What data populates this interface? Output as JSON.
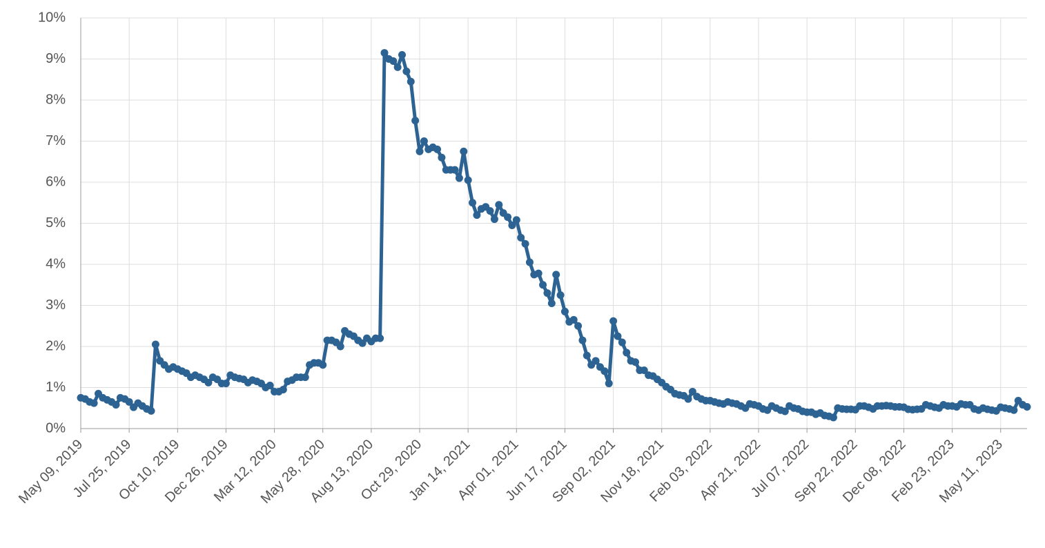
{
  "chart_data": {
    "type": "line",
    "categories": [
      "May 09, 2019",
      null,
      null,
      null,
      null,
      null,
      null,
      null,
      null,
      null,
      null,
      "Jul 25, 2019",
      null,
      null,
      null,
      null,
      null,
      null,
      null,
      null,
      null,
      null,
      "Oct 10, 2019",
      null,
      null,
      null,
      null,
      null,
      null,
      null,
      null,
      null,
      null,
      "Dec 26, 2019",
      null,
      null,
      null,
      null,
      null,
      null,
      null,
      null,
      null,
      null,
      "Mar 12, 2020",
      null,
      null,
      null,
      null,
      null,
      null,
      null,
      null,
      null,
      null,
      "May 28, 2020",
      null,
      null,
      null,
      null,
      null,
      null,
      null,
      null,
      null,
      null,
      "Aug 13, 2020",
      null,
      null,
      null,
      null,
      null,
      null,
      null,
      null,
      null,
      null,
      "Oct 29, 2020",
      null,
      null,
      null,
      null,
      null,
      null,
      null,
      null,
      null,
      null,
      "Jan 14, 2021",
      null,
      null,
      null,
      null,
      null,
      null,
      null,
      null,
      null,
      null,
      "Apr 01, 2021",
      null,
      null,
      null,
      null,
      null,
      null,
      null,
      null,
      null,
      null,
      "Jun 17, 2021",
      null,
      null,
      null,
      null,
      null,
      null,
      null,
      null,
      null,
      null,
      "Sep 02, 2021",
      null,
      null,
      null,
      null,
      null,
      null,
      null,
      null,
      null,
      null,
      "Nov 18, 2021",
      null,
      null,
      null,
      null,
      null,
      null,
      null,
      null,
      null,
      null,
      "Feb 03, 2022",
      null,
      null,
      null,
      null,
      null,
      null,
      null,
      null,
      null,
      null,
      "Apr 21, 2022",
      null,
      null,
      null,
      null,
      null,
      null,
      null,
      null,
      null,
      null,
      "Jul 07, 2022",
      null,
      null,
      null,
      null,
      null,
      null,
      null,
      null,
      null,
      null,
      "Sep 22, 2022",
      null,
      null,
      null,
      null,
      null,
      null,
      null,
      null,
      null,
      null,
      "Dec 08, 2022",
      null,
      null,
      null,
      null,
      null,
      null,
      null,
      null,
      null,
      null,
      "Feb 23, 2023",
      null,
      null,
      null,
      null,
      null,
      null,
      null,
      null,
      null,
      null,
      "May 11, 2023",
      null,
      null,
      null,
      null,
      null,
      null
    ],
    "values": [
      0.75,
      0.72,
      0.65,
      0.62,
      0.85,
      0.75,
      0.7,
      0.65,
      0.58,
      0.75,
      0.72,
      0.65,
      0.52,
      0.62,
      0.55,
      0.48,
      0.43,
      2.05,
      1.65,
      1.55,
      1.45,
      1.5,
      1.45,
      1.4,
      1.35,
      1.25,
      1.3,
      1.25,
      1.2,
      1.12,
      1.25,
      1.2,
      1.1,
      1.1,
      1.3,
      1.25,
      1.22,
      1.2,
      1.12,
      1.18,
      1.15,
      1.1,
      1.0,
      1.05,
      0.9,
      0.9,
      0.95,
      1.15,
      1.18,
      1.25,
      1.25,
      1.25,
      1.55,
      1.6,
      1.6,
      1.55,
      2.15,
      2.15,
      2.1,
      2.0,
      2.38,
      2.3,
      2.25,
      2.15,
      2.08,
      2.2,
      2.12,
      2.2,
      2.2,
      9.15,
      9.0,
      8.95,
      8.8,
      9.1,
      8.7,
      8.45,
      7.5,
      6.75,
      7.0,
      6.8,
      6.85,
      6.8,
      6.6,
      6.3,
      6.3,
      6.3,
      6.1,
      6.75,
      6.05,
      5.5,
      5.2,
      5.35,
      5.4,
      5.3,
      5.1,
      5.45,
      5.25,
      5.15,
      4.95,
      5.08,
      4.65,
      4.5,
      4.05,
      3.75,
      3.78,
      3.5,
      3.3,
      3.05,
      3.75,
      3.25,
      2.85,
      2.6,
      2.65,
      2.5,
      2.15,
      1.78,
      1.55,
      1.65,
      1.5,
      1.4,
      1.1,
      2.62,
      2.25,
      2.1,
      1.85,
      1.65,
      1.62,
      1.42,
      1.42,
      1.3,
      1.28,
      1.2,
      1.12,
      1.02,
      0.95,
      0.85,
      0.82,
      0.8,
      0.72,
      0.9,
      0.78,
      0.72,
      0.68,
      0.68,
      0.65,
      0.62,
      0.6,
      0.65,
      0.62,
      0.6,
      0.55,
      0.5,
      0.6,
      0.58,
      0.55,
      0.48,
      0.45,
      0.55,
      0.5,
      0.45,
      0.42,
      0.55,
      0.5,
      0.48,
      0.42,
      0.4,
      0.4,
      0.35,
      0.38,
      0.32,
      0.3,
      0.27,
      0.5,
      0.48,
      0.47,
      0.47,
      0.46,
      0.55,
      0.55,
      0.52,
      0.48,
      0.55,
      0.55,
      0.56,
      0.55,
      0.53,
      0.53,
      0.52,
      0.47,
      0.46,
      0.47,
      0.48,
      0.58,
      0.55,
      0.52,
      0.5,
      0.58,
      0.55,
      0.55,
      0.53,
      0.6,
      0.58,
      0.58,
      0.48,
      0.45,
      0.5,
      0.47,
      0.45,
      0.43,
      0.52,
      0.5,
      0.48,
      0.45,
      0.68,
      0.58,
      0.53
    ],
    "color": "#2c6393",
    "ylim": [
      0,
      10
    ],
    "yticks": [
      {
        "value": 0,
        "label": "0%"
      },
      {
        "value": 1,
        "label": "1%"
      },
      {
        "value": 2,
        "label": "2%"
      },
      {
        "value": 3,
        "label": "3%"
      },
      {
        "value": 4,
        "label": "4%"
      },
      {
        "value": 5,
        "label": "5%"
      },
      {
        "value": 6,
        "label": "6%"
      },
      {
        "value": 7,
        "label": "7%"
      },
      {
        "value": 8,
        "label": "8%"
      },
      {
        "value": 9,
        "label": "9%"
      },
      {
        "value": 10,
        "label": "10%"
      }
    ],
    "grid": true
  }
}
